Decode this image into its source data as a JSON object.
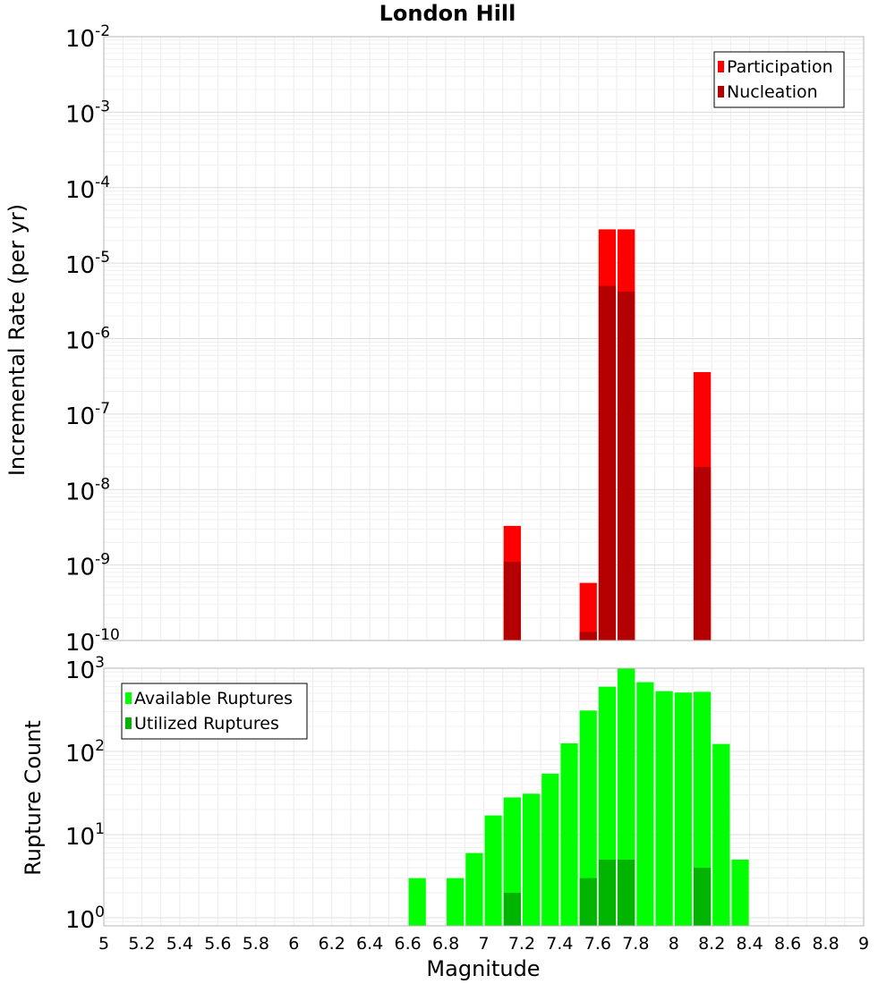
{
  "chart_data": [
    {
      "type": "bar",
      "title": "London Hill",
      "xlabel": "",
      "ylabel": "Incremental Rate (per yr)",
      "yscale": "log",
      "ylim": [
        1e-10,
        0.01
      ],
      "xlim": [
        5,
        9
      ],
      "grid": true,
      "legend_position": "top-right",
      "y_tick_labels": [
        "10^-10",
        "10^-9",
        "10^-8",
        "10^-7",
        "10^-6",
        "10^-5",
        "10^-4",
        "10^-3",
        "10^-2"
      ],
      "series": [
        {
          "name": "Participation",
          "color": "#ff0000",
          "x": [
            7.15,
            7.55,
            7.65,
            7.75,
            8.15
          ],
          "values": [
            3.3e-09,
            5.8e-10,
            2.8e-05,
            2.8e-05,
            3.6e-07
          ]
        },
        {
          "name": "Nucleation",
          "color": "#b40000",
          "x": [
            7.15,
            7.55,
            7.65,
            7.75,
            8.15
          ],
          "values": [
            1.1e-09,
            1.3e-10,
            5e-06,
            4.2e-06,
            2e-08
          ]
        }
      ]
    },
    {
      "type": "bar",
      "title": "",
      "xlabel": "Magnitude",
      "ylabel": "Rupture Count",
      "yscale": "log",
      "ylim": [
        0.8,
        1000
      ],
      "xlim": [
        5,
        9
      ],
      "grid": true,
      "legend_position": "top-left",
      "y_tick_labels": [
        "10^0",
        "10^1",
        "10^2",
        "10^3"
      ],
      "x_tick_labels": [
        "5",
        "5.2",
        "5.4",
        "5.6",
        "5.8",
        "6",
        "6.2",
        "6.4",
        "6.6",
        "6.8",
        "7",
        "7.2",
        "7.4",
        "7.6",
        "7.8",
        "8",
        "8.2",
        "8.4",
        "8.6",
        "8.8",
        "9"
      ],
      "series": [
        {
          "name": "Available Ruptures",
          "color": "#00ff00",
          "x": [
            6.65,
            6.85,
            6.95,
            7.05,
            7.15,
            7.25,
            7.35,
            7.45,
            7.55,
            7.65,
            7.75,
            7.85,
            7.95,
            8.05,
            8.15,
            8.25,
            8.35
          ],
          "values": [
            3,
            3,
            6,
            17,
            28,
            31,
            54,
            125,
            310,
            600,
            1000,
            680,
            530,
            510,
            520,
            123,
            5
          ]
        },
        {
          "name": "Utilized Ruptures",
          "color": "#00b400",
          "x": [
            7.15,
            7.55,
            7.65,
            7.75,
            8.15
          ],
          "values": [
            2,
            3,
            5,
            5,
            4
          ]
        }
      ]
    }
  ]
}
